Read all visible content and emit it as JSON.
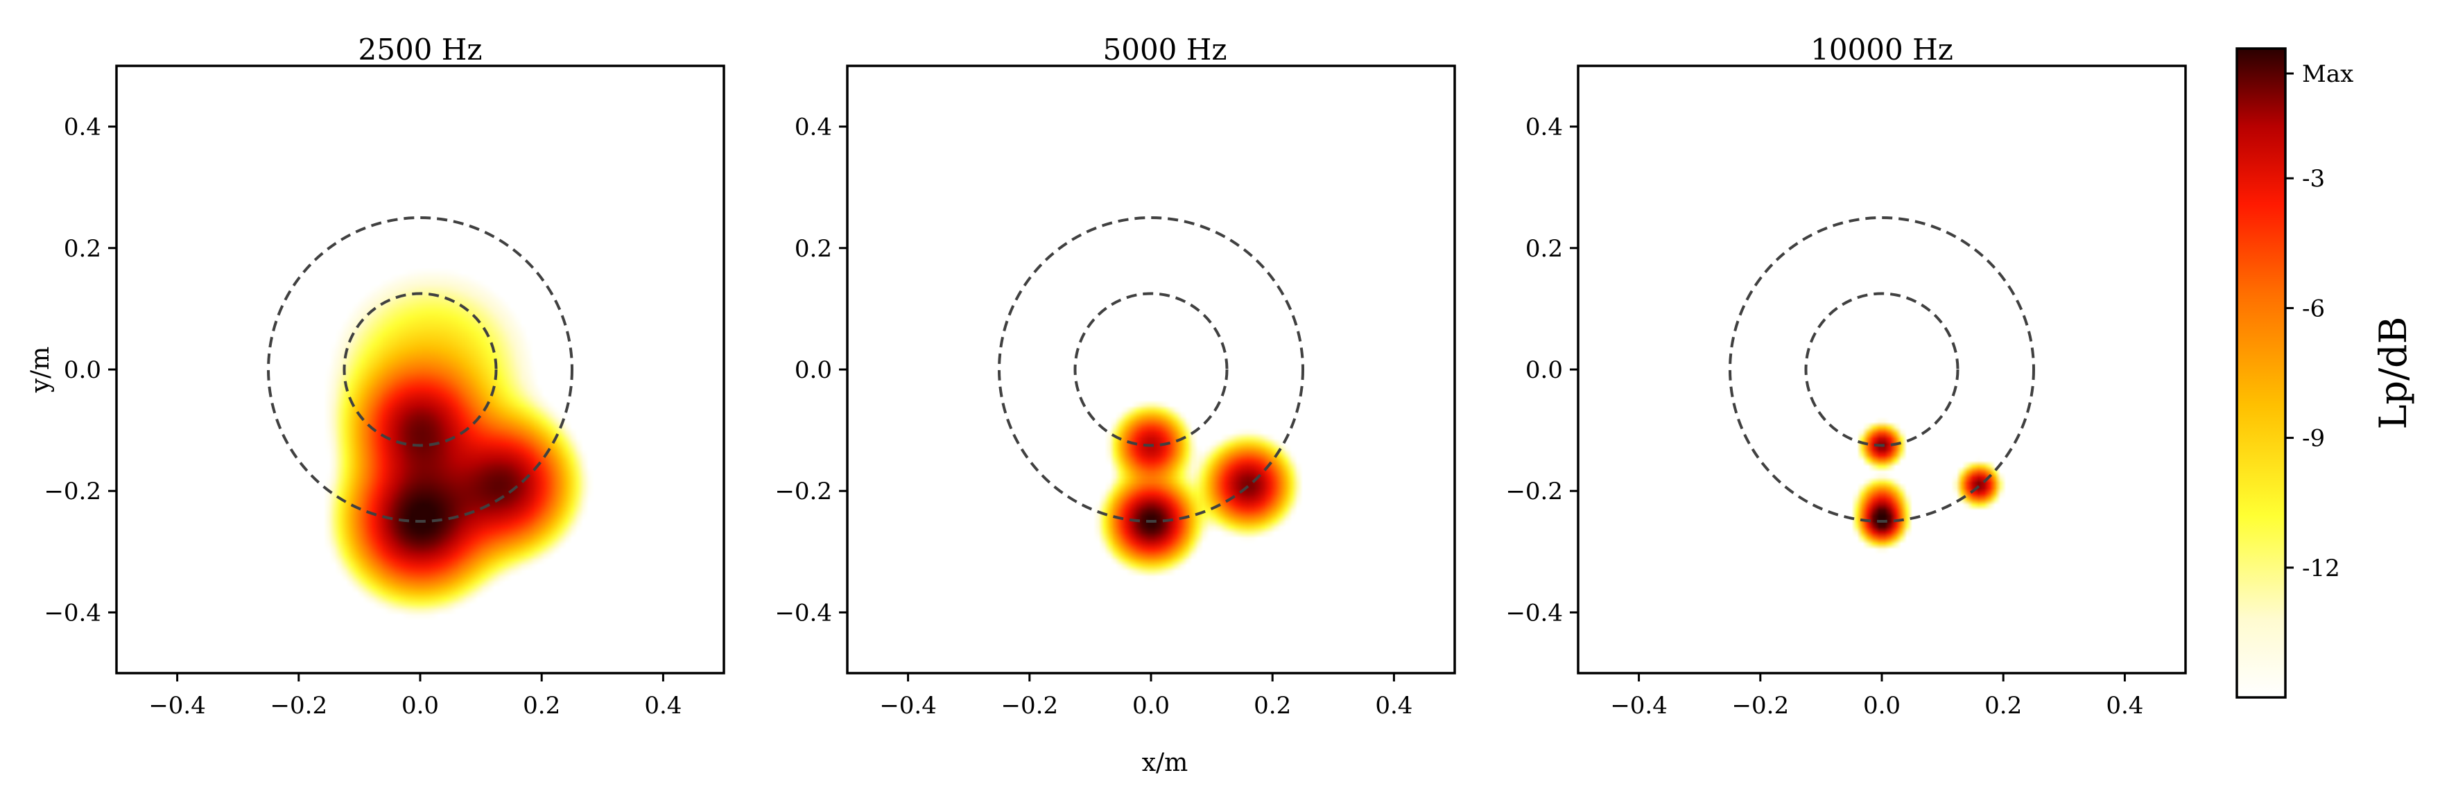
{
  "chart_data": {
    "type": "heatmap",
    "shared_xlabel": "x/m",
    "shared_ylabel": "y/m",
    "xlim": [
      -0.5,
      0.5
    ],
    "ylim": [
      -0.5,
      0.5
    ],
    "xticks": [
      -0.4,
      -0.2,
      0.0,
      0.2,
      0.4
    ],
    "xtick_labels": [
      "−0.4",
      "−0.2",
      "0.0",
      "0.2",
      "0.4"
    ],
    "yticks": [
      0.4,
      0.2,
      0.0,
      -0.2,
      -0.4
    ],
    "ytick_labels": [
      "0.4",
      "0.2",
      "0.0",
      "−0.2",
      "−0.4"
    ],
    "grid": false,
    "reference_circles": [
      {
        "center": [
          0.0,
          0.0
        ],
        "radius": 0.25,
        "style": "dashed",
        "color": "#404040"
      },
      {
        "center": [
          0.0,
          0.0
        ],
        "radius": 0.125,
        "style": "dashed",
        "color": "#404040"
      }
    ],
    "colormap": "hot_r",
    "colorbar": {
      "title": "Lp/dB",
      "range": [
        -15,
        0
      ],
      "ticks": [
        0,
        -3,
        -6,
        -9,
        -12
      ],
      "tick_labels": [
        "Max",
        "-3",
        "-6",
        "-9",
        "-12"
      ]
    },
    "panels": [
      {
        "title": "2500 Hz",
        "sources": [
          {
            "x": 0.0,
            "y": -0.25,
            "level": 0.0,
            "spread": 0.06
          },
          {
            "x": 0.0,
            "y": -0.1,
            "level": -1.5,
            "spread": 0.055
          },
          {
            "x": 0.14,
            "y": -0.19,
            "level": -1.0,
            "spread": 0.055
          },
          {
            "x": 0.02,
            "y": 0.0,
            "level": -9.0,
            "spread": 0.1
          }
        ]
      },
      {
        "title": "5000 Hz",
        "sources": [
          {
            "x": 0.0,
            "y": -0.25,
            "level": 0.0,
            "spread": 0.035
          },
          {
            "x": 0.0,
            "y": -0.125,
            "level": -2.0,
            "spread": 0.03
          },
          {
            "x": 0.16,
            "y": -0.19,
            "level": -1.0,
            "spread": 0.035
          }
        ]
      },
      {
        "title": "10000 Hz",
        "sources": [
          {
            "x": 0.0,
            "y": -0.25,
            "level": 0.0,
            "spread": 0.018
          },
          {
            "x": 0.0,
            "y": -0.125,
            "level": -1.0,
            "spread": 0.016
          },
          {
            "x": 0.0,
            "y": -0.22,
            "level": -4.0,
            "spread": 0.02
          },
          {
            "x": 0.16,
            "y": -0.19,
            "level": -1.0,
            "spread": 0.016
          }
        ]
      }
    ]
  }
}
